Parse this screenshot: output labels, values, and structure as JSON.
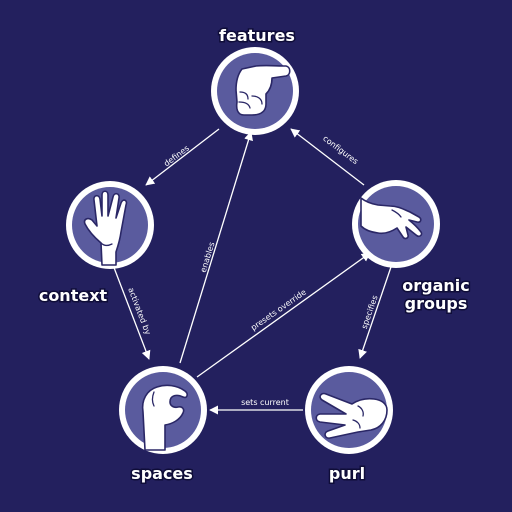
{
  "colors": {
    "background": "#23205e",
    "node_fill": "#5a5b9e",
    "ring": "#ffffff",
    "text": "#ffffff"
  },
  "nodes": {
    "features": {
      "label": "features",
      "icon": "fist-hand-icon"
    },
    "context": {
      "label": "context",
      "icon": "vulcan-salute-hand-icon"
    },
    "organic_groups": {
      "label_line1": "organic",
      "label_line2": "groups",
      "icon": "open-flat-hand-icon"
    },
    "spaces": {
      "label": "spaces",
      "icon": "pinch-hand-icon"
    },
    "purl": {
      "label": "purl",
      "icon": "scissors-hand-icon"
    }
  },
  "edges": {
    "defines": "defines",
    "configures": "configures",
    "activated_by": "activated by",
    "enables": "enables",
    "presets_override": "presets override",
    "specifies": "specifies",
    "sets_current": "sets current"
  }
}
